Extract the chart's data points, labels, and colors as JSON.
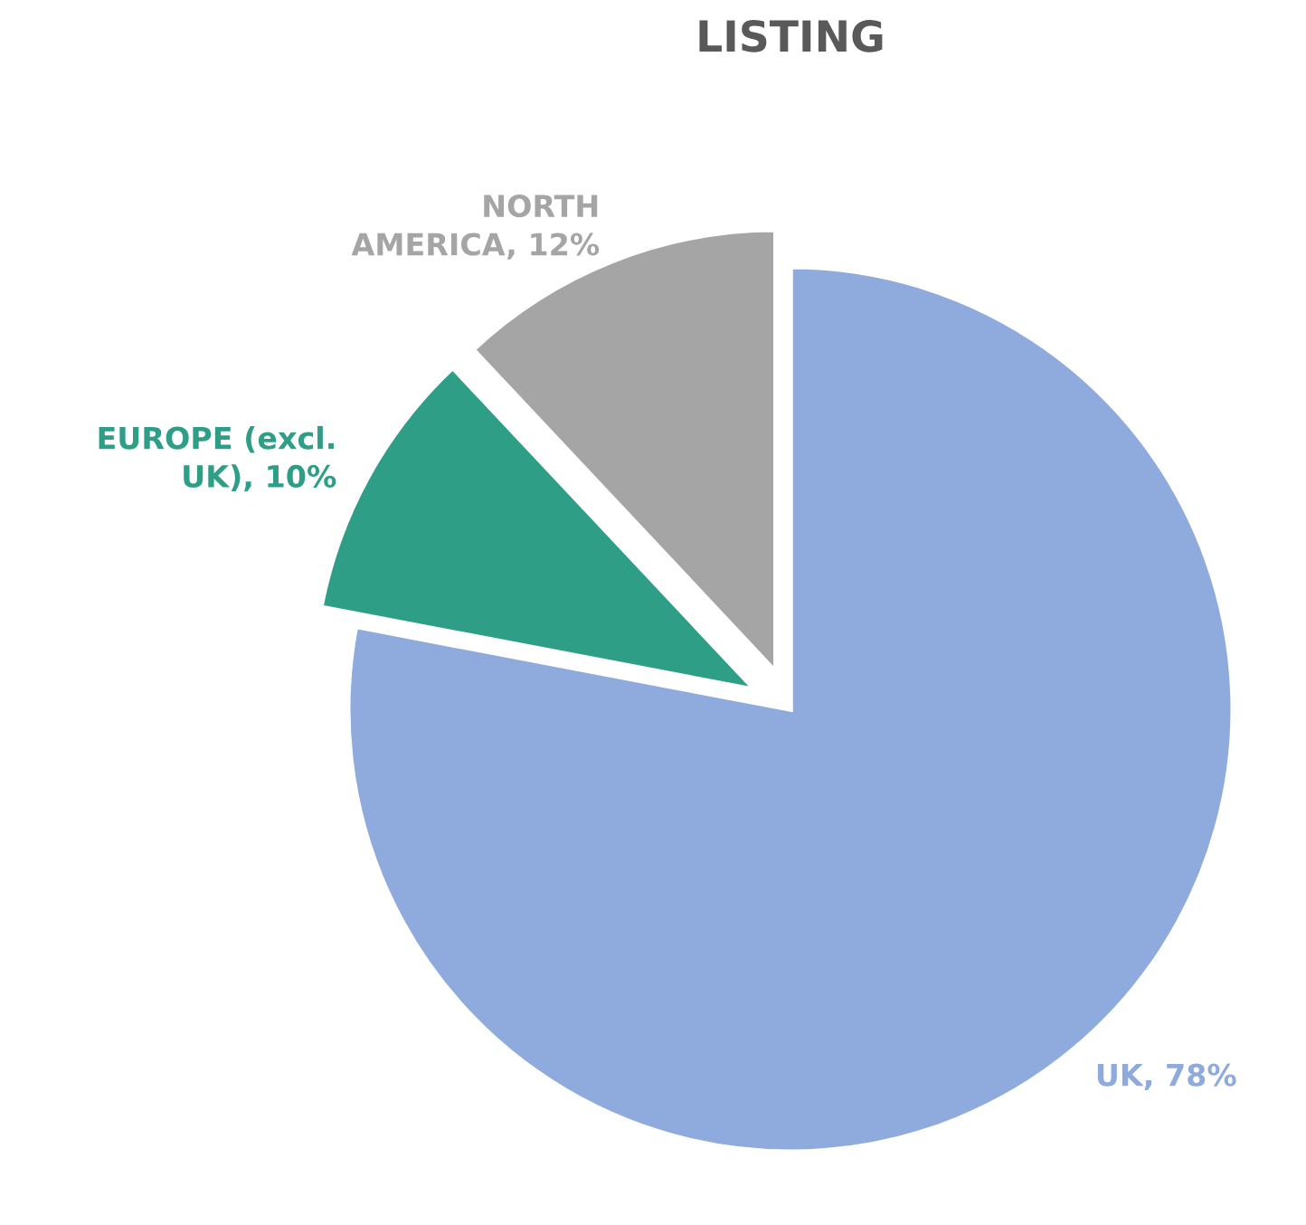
{
  "chart_data": {
    "type": "pie",
    "title": "LISTING",
    "categories": [
      "UK",
      "EUROPE (excl. UK)",
      "NORTH AMERICA"
    ],
    "values": [
      78,
      10,
      12
    ],
    "value_labels": [
      "78%",
      "10%",
      "12%"
    ],
    "colors": [
      "#8faadc",
      "#2e9e87",
      "#a5a5a5"
    ],
    "legend": false
  }
}
